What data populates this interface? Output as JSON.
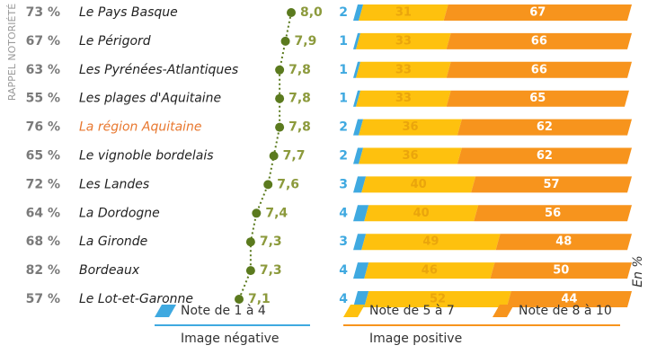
{
  "side_label": "RAPPEL NOTORIÉTÉ",
  "unit_label": "En %",
  "chart_data": {
    "type": "bar",
    "orientation": "horizontal",
    "stacked": true,
    "categories": [
      "Le Pays Basque",
      "Le Périgord",
      "Les Pyrénées-Atlantiques",
      "Les plages d'Aquitaine",
      "La région Aquitaine",
      "Le vignoble bordelais",
      "Les Landes",
      "La Dordogne",
      "La Gironde",
      "Bordeaux",
      "Le Lot-et-Garonne"
    ],
    "category_colors": [
      "#222",
      "#222",
      "#222",
      "#222",
      "#e8772e",
      "#222",
      "#222",
      "#222",
      "#222",
      "#222",
      "#222"
    ],
    "notoriety": {
      "values": [
        73,
        67,
        63,
        55,
        76,
        65,
        72,
        64,
        68,
        82,
        57
      ],
      "value_labels": [
        "73 %",
        "67 %",
        "63 %",
        "55 %",
        "76 %",
        "65 %",
        "72 %",
        "64 %",
        "68 %",
        "82 %",
        "57 %"
      ],
      "color": "#7a7a7a"
    },
    "scores": {
      "values": [
        8.0,
        7.9,
        7.8,
        7.8,
        7.8,
        7.7,
        7.6,
        7.4,
        7.3,
        7.3,
        7.1
      ],
      "value_labels": [
        "8,0",
        "7,9",
        "7,8",
        "7,8",
        "7,8",
        "7,7",
        "7,6",
        "7,4",
        "7,3",
        "7,3",
        "7,1"
      ],
      "xlim": [
        7,
        8.1
      ],
      "color": "#8c9a3c",
      "dot_color": "#5b7a1e"
    },
    "xlim": [
      0,
      100
    ],
    "series": [
      {
        "name": "Note de 1 à 4",
        "color": "#3fa9e0",
        "label_color": "#3fa9e0",
        "values": [
          2,
          1,
          1,
          1,
          2,
          2,
          3,
          4,
          3,
          4,
          4
        ]
      },
      {
        "name": "Note de 5 à 7",
        "color": "#fec10e",
        "label_color": "#eaa50c",
        "values": [
          31,
          33,
          33,
          33,
          36,
          36,
          40,
          40,
          49,
          46,
          52
        ]
      },
      {
        "name": "Note de 8 à 10",
        "color": "#f7941d",
        "label_color": "#ffffff",
        "values": [
          67,
          66,
          66,
          65,
          62,
          62,
          57,
          56,
          48,
          50,
          44
        ]
      }
    ],
    "groups": [
      {
        "label": "Image négative",
        "color": "#3fa9e0"
      },
      {
        "label": "Image positive",
        "color": "#f7941d"
      }
    ]
  }
}
